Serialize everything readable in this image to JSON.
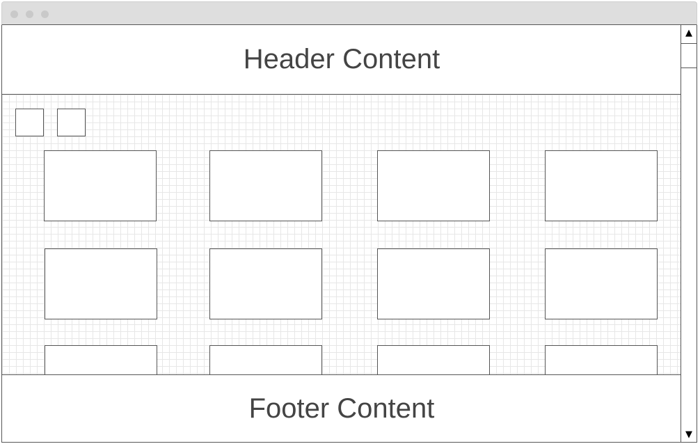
{
  "header": {
    "text": "Header Content"
  },
  "footer": {
    "text": "Footer Content"
  },
  "toolbar": {
    "buttons": [
      "",
      ""
    ]
  },
  "grid": {
    "rows": 3,
    "columns": 4
  },
  "scrollbar": {
    "up_icon": "triangle-up-icon",
    "down_icon": "triangle-down-icon",
    "up_glyph": "▲",
    "down_glyph": "▼"
  },
  "colors": {
    "titlebar": "#dedede",
    "border": "#555555",
    "grid_line": "#e7e7e7",
    "text": "#444444"
  }
}
